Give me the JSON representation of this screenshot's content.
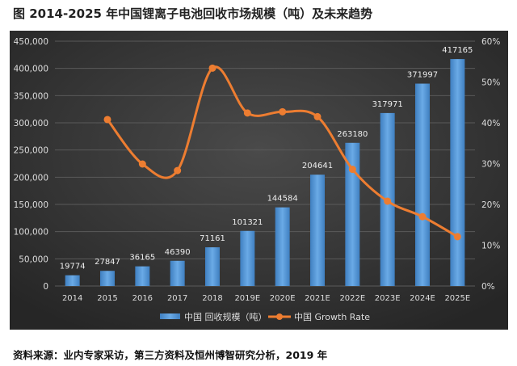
{
  "title": "图  2014-2025 年中国锂离子电池回收市场规模（吨）及未来趋势",
  "source": "资料来源：业内专家采访，第三方资料及恒州博智研究分析，2019 年",
  "chart_data": {
    "type": "bar+line",
    "categories": [
      "2014",
      "2015",
      "2016",
      "2017",
      "2018",
      "2019E",
      "2020E",
      "2021E",
      "2022E",
      "2023E",
      "2024E",
      "2025E"
    ],
    "series": [
      {
        "name": "中国 回收规模（吨）",
        "type": "bar",
        "axis": "left",
        "color": "#5b9bd5",
        "values": [
          19774,
          27847,
          36165,
          46390,
          71161,
          101321,
          144584,
          204641,
          263180,
          317971,
          371997,
          417165
        ],
        "labels": [
          "19774",
          "27847",
          "36165",
          "46390",
          "71161",
          "101321",
          "144584",
          "204641",
          "263180",
          "317971",
          "371997",
          "417165"
        ]
      },
      {
        "name": "中国 Growth Rate",
        "type": "line",
        "axis": "right",
        "color": "#ed7d31",
        "values": [
          null,
          40.8,
          29.9,
          28.3,
          53.4,
          42.4,
          42.7,
          41.5,
          28.6,
          20.8,
          17.0,
          12.1
        ]
      }
    ],
    "y_left": {
      "range": [
        0,
        450000
      ],
      "ticks": [
        "0",
        "50,000",
        "100,000",
        "150,000",
        "200,000",
        "250,000",
        "300,000",
        "350,000",
        "400,000",
        "450,000"
      ]
    },
    "y_right": {
      "range": [
        0,
        60
      ],
      "ticks": [
        "0%",
        "10%",
        "20%",
        "30%",
        "40%",
        "50%",
        "60%"
      ]
    },
    "grid": true,
    "legend": "bottom",
    "background": "#3a3a3a"
  }
}
